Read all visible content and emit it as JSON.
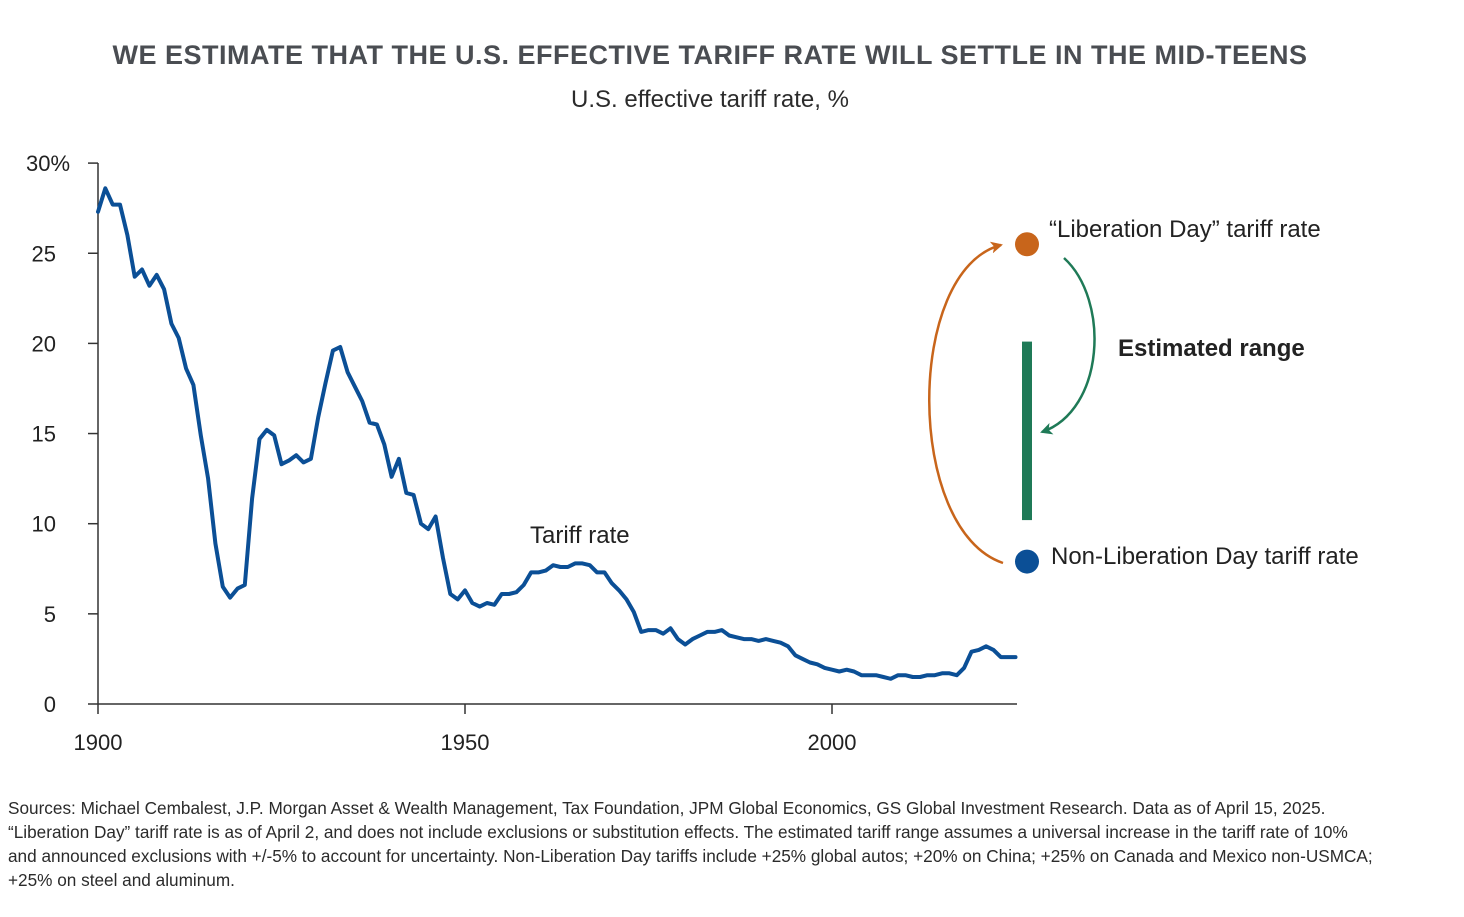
{
  "colors": {
    "line": "#0b4f96",
    "axis": "#333333",
    "liberation": "#c8651b",
    "non_liberation": "#0b4f96",
    "range": "#1f7a57"
  },
  "chart_data": {
    "type": "line",
    "title": "WE ESTIMATE THAT THE U.S. EFFECTIVE TARIFF RATE WILL SETTLE IN THE MID-TEENS",
    "subtitle": "U.S. effective tariff rate, %",
    "xlabel": "",
    "ylabel": "",
    "xlim": [
      1900,
      2025
    ],
    "ylim": [
      0,
      30
    ],
    "y_ticks": [
      "0",
      "5",
      "10",
      "15",
      "20",
      "25",
      "30%"
    ],
    "x_ticks": [
      "1900",
      "1950",
      "2000"
    ],
    "grid": false,
    "series": [
      {
        "name": "Tariff rate",
        "x": [
          1900,
          1901,
          1902,
          1903,
          1904,
          1905,
          1906,
          1907,
          1908,
          1909,
          1910,
          1911,
          1912,
          1913,
          1914,
          1915,
          1916,
          1917,
          1918,
          1919,
          1920,
          1921,
          1922,
          1923,
          1924,
          1925,
          1926,
          1927,
          1928,
          1929,
          1930,
          1931,
          1932,
          1933,
          1934,
          1935,
          1936,
          1937,
          1938,
          1939,
          1940,
          1941,
          1942,
          1943,
          1944,
          1945,
          1946,
          1947,
          1948,
          1949,
          1950,
          1951,
          1952,
          1953,
          1954,
          1955,
          1956,
          1957,
          1958,
          1959,
          1960,
          1961,
          1962,
          1963,
          1964,
          1965,
          1966,
          1967,
          1968,
          1969,
          1970,
          1971,
          1972,
          1973,
          1974,
          1975,
          1976,
          1977,
          1978,
          1979,
          1980,
          1981,
          1982,
          1983,
          1984,
          1985,
          1986,
          1987,
          1988,
          1989,
          1990,
          1991,
          1992,
          1993,
          1994,
          1995,
          1996,
          1997,
          1998,
          1999,
          2000,
          2001,
          2002,
          2003,
          2004,
          2005,
          2006,
          2007,
          2008,
          2009,
          2010,
          2011,
          2012,
          2013,
          2014,
          2015,
          2016,
          2017,
          2018,
          2019,
          2020,
          2021,
          2022,
          2023,
          2024,
          2025
        ],
        "values": [
          27.3,
          28.6,
          27.7,
          27.7,
          26.0,
          23.7,
          24.1,
          23.2,
          23.8,
          23.0,
          21.1,
          20.3,
          18.6,
          17.7,
          14.9,
          12.5,
          8.9,
          6.5,
          5.9,
          6.4,
          6.6,
          11.4,
          14.7,
          15.2,
          14.9,
          13.3,
          13.5,
          13.8,
          13.4,
          13.6,
          15.9,
          17.8,
          19.6,
          19.8,
          18.4,
          17.6,
          16.8,
          15.6,
          15.5,
          14.4,
          12.6,
          13.6,
          11.7,
          11.6,
          10.0,
          9.7,
          10.4,
          8.1,
          6.1,
          5.8,
          6.3,
          5.6,
          5.4,
          5.6,
          5.5,
          6.1,
          6.1,
          6.2,
          6.6,
          7.3,
          7.3,
          7.4,
          7.7,
          7.6,
          7.6,
          7.8,
          7.8,
          7.7,
          7.3,
          7.3,
          6.7,
          6.3,
          5.8,
          5.1,
          4.0,
          4.1,
          4.1,
          3.9,
          4.2,
          3.6,
          3.3,
          3.6,
          3.8,
          4.0,
          4.0,
          4.1,
          3.8,
          3.7,
          3.6,
          3.6,
          3.5,
          3.6,
          3.5,
          3.4,
          3.2,
          2.7,
          2.5,
          2.3,
          2.2,
          2.0,
          1.9,
          1.8,
          1.9,
          1.8,
          1.6,
          1.6,
          1.6,
          1.5,
          1.4,
          1.6,
          1.6,
          1.5,
          1.5,
          1.6,
          1.6,
          1.7,
          1.7,
          1.6,
          2.0,
          2.9,
          3.0,
          3.2,
          3.0,
          2.6,
          2.6,
          2.6
        ]
      }
    ],
    "points": [
      {
        "label": "“Liberation Day” tariff rate",
        "x": 2025,
        "y": 25.5
      },
      {
        "label": "Non-Liberation Day tariff rate",
        "x": 2025,
        "y": 7.9
      }
    ],
    "range": {
      "label": "Estimated range",
      "low": 10.2,
      "high": 20.1
    },
    "annotations": {
      "series_label": "Tariff rate"
    }
  },
  "footnote": {
    "line1": "Sources: Michael Cembalest, J.P. Morgan Asset & Wealth Management, Tax Foundation, JPM Global Economics, GS Global Investment Research. Data as of April 15, 2025.",
    "line2": "“Liberation Day” tariff rate is as of April 2, and does not include exclusions or substitution effects. The estimated tariff range assumes a universal increase in the tariff rate of 10%",
    "line3": "and announced exclusions with +/-5% to account for uncertainty. Non-Liberation Day tariffs include +25% global autos; +20% on China; +25% on Canada and Mexico non-USMCA;",
    "line4": "+25% on steel and aluminum."
  }
}
